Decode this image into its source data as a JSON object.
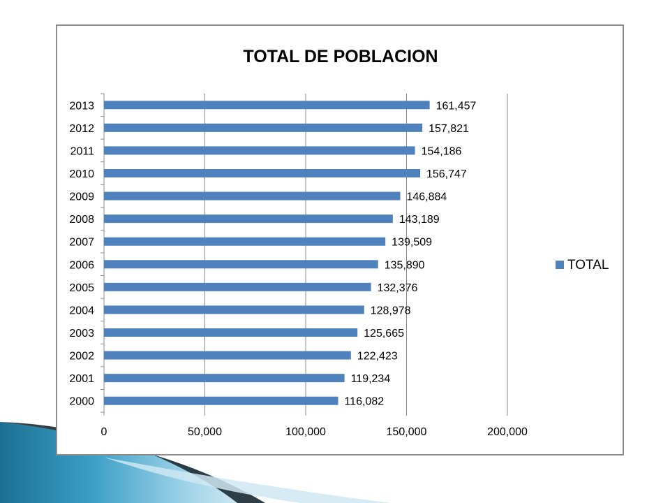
{
  "chart_data": {
    "type": "bar",
    "orientation": "horizontal",
    "title": "TOTAL DE POBLACION",
    "categories": [
      "2013",
      "2012",
      "2011",
      "2010",
      "2009",
      "2008",
      "2007",
      "2006",
      "2005",
      "2004",
      "2003",
      "2002",
      "2001",
      "2000"
    ],
    "series": [
      {
        "name": "TOTAL",
        "color": "#4f81bd",
        "values": [
          161457,
          157821,
          154186,
          156747,
          146884,
          143189,
          139509,
          135890,
          132376,
          128978,
          125665,
          122423,
          119234,
          116082
        ],
        "labels": [
          "161,457",
          "157,821",
          "154,186",
          "156,747",
          "146,884",
          "143,189",
          "139,509",
          "135,890",
          "132,376",
          "128,978",
          "125,665",
          "122,423",
          "119,234",
          "116,082"
        ]
      }
    ],
    "xlim": [
      0,
      200000
    ],
    "xticks": [
      0,
      50000,
      100000,
      150000,
      200000
    ],
    "xtick_labels": [
      "0",
      "50,000",
      "100,000",
      "150,000",
      "200,000"
    ],
    "grid": "vertical",
    "legend_position": "right"
  },
  "colors": {
    "bar": "#4f81bd",
    "grid": "#8c8c8c",
    "frame": "#8e8e8e"
  }
}
